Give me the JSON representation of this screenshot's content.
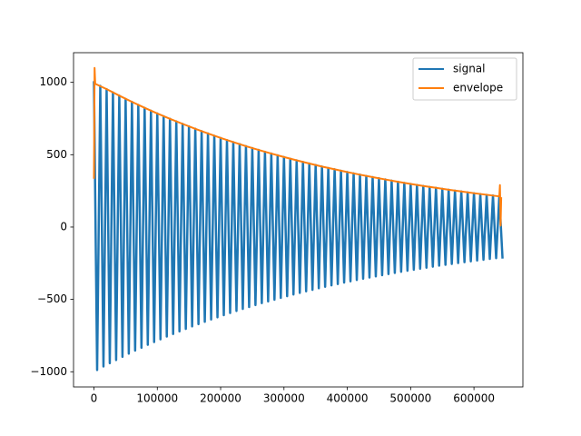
{
  "chart_data": {
    "type": "line",
    "xlim": [
      -32250,
      677250
    ],
    "ylim": [
      -1105,
      1205
    ],
    "xticks": [
      0,
      100000,
      200000,
      300000,
      400000,
      500000,
      600000
    ],
    "yticks": [
      {
        "value": -1000,
        "label": "−1000"
      },
      {
        "value": -500,
        "label": "−500"
      },
      0,
      500,
      1000
    ],
    "legend": "upper right",
    "series": [
      {
        "name": "signal",
        "color": "#1f77b4",
        "x": [
          0,
          5000,
          10000,
          15000,
          20000,
          25000,
          30000,
          35000,
          40000,
          45000,
          50000,
          55000,
          60000,
          65000,
          70000,
          75000,
          80000,
          85000,
          90000,
          95000,
          100000,
          105000,
          110000,
          115000,
          120000,
          125000,
          130000,
          135000,
          140000,
          145000,
          150000,
          155000,
          160000,
          165000,
          170000,
          175000,
          180000,
          185000,
          190000,
          195000,
          200000,
          205000,
          210000,
          215000,
          220000,
          225000,
          230000,
          235000,
          240000,
          245000,
          250000,
          255000,
          260000,
          265000,
          270000,
          275000,
          280000,
          285000,
          290000,
          295000,
          300000,
          305000,
          310000,
          315000,
          320000,
          325000,
          330000,
          335000,
          340000,
          345000,
          350000,
          355000,
          360000,
          365000,
          370000,
          375000,
          380000,
          385000,
          390000,
          395000,
          400000,
          405000,
          410000,
          415000,
          420000,
          425000,
          430000,
          435000,
          440000,
          445000,
          450000,
          455000,
          460000,
          465000,
          470000,
          475000,
          480000,
          485000,
          490000,
          495000,
          500000,
          505000,
          510000,
          515000,
          520000,
          525000,
          530000,
          535000,
          540000,
          545000,
          550000,
          555000,
          560000,
          565000,
          570000,
          575000,
          580000,
          585000,
          590000,
          595000,
          600000,
          605000,
          610000,
          615000,
          620000,
          625000,
          630000,
          635000,
          640000,
          645000
        ],
        "values": [
          1000,
          -988,
          976,
          -964,
          953,
          -941,
          930,
          -919,
          908,
          -897,
          886,
          -875,
          865,
          -854,
          844,
          -834,
          824,
          -814,
          804,
          -795,
          785,
          -776,
          766,
          -757,
          748,
          -739,
          730,
          -721,
          713,
          -704,
          696,
          -687,
          679,
          -671,
          663,
          -655,
          647,
          -639,
          631,
          -624,
          616,
          -609,
          601,
          -594,
          587,
          -580,
          573,
          -566,
          559,
          -553,
          546,
          -539,
          533,
          -526,
          520,
          -514,
          508,
          -502,
          496,
          -490,
          484,
          -478,
          472,
          -466,
          461,
          -455,
          450,
          -444,
          439,
          -434,
          429,
          -423,
          418,
          -413,
          408,
          -403,
          399,
          -394,
          389,
          -384,
          380,
          -375,
          371,
          -366,
          362,
          -357,
          353,
          -349,
          345,
          -341,
          337,
          -333,
          329,
          -325,
          321,
          -317,
          313,
          -309,
          305,
          -302,
          298,
          -295,
          291,
          -288,
          284,
          -281,
          277,
          -274,
          271,
          -267,
          264,
          -261,
          258,
          -255,
          252,
          -249,
          246,
          -243,
          240,
          -237,
          234,
          -231,
          228,
          -226,
          223,
          -220,
          218,
          -215,
          212,
          -210
        ]
      },
      {
        "name": "envelope",
        "color": "#ff7f0e",
        "x": [
          0,
          1000,
          2000,
          20000,
          40000,
          60000,
          80000,
          100000,
          120000,
          140000,
          160000,
          180000,
          200000,
          220000,
          240000,
          260000,
          280000,
          300000,
          320000,
          340000,
          360000,
          380000,
          400000,
          420000,
          440000,
          460000,
          480000,
          500000,
          520000,
          540000,
          560000,
          580000,
          600000,
          620000,
          640000,
          641000,
          642000,
          643000
        ],
        "values": [
          340,
          1100,
          990,
          953,
          908,
          865,
          824,
          785,
          748,
          713,
          679,
          647,
          616,
          587,
          559,
          533,
          508,
          484,
          461,
          439,
          418,
          399,
          380,
          362,
          345,
          329,
          313,
          298,
          284,
          271,
          258,
          246,
          234,
          223,
          212,
          290,
          10,
          200
        ]
      }
    ]
  }
}
